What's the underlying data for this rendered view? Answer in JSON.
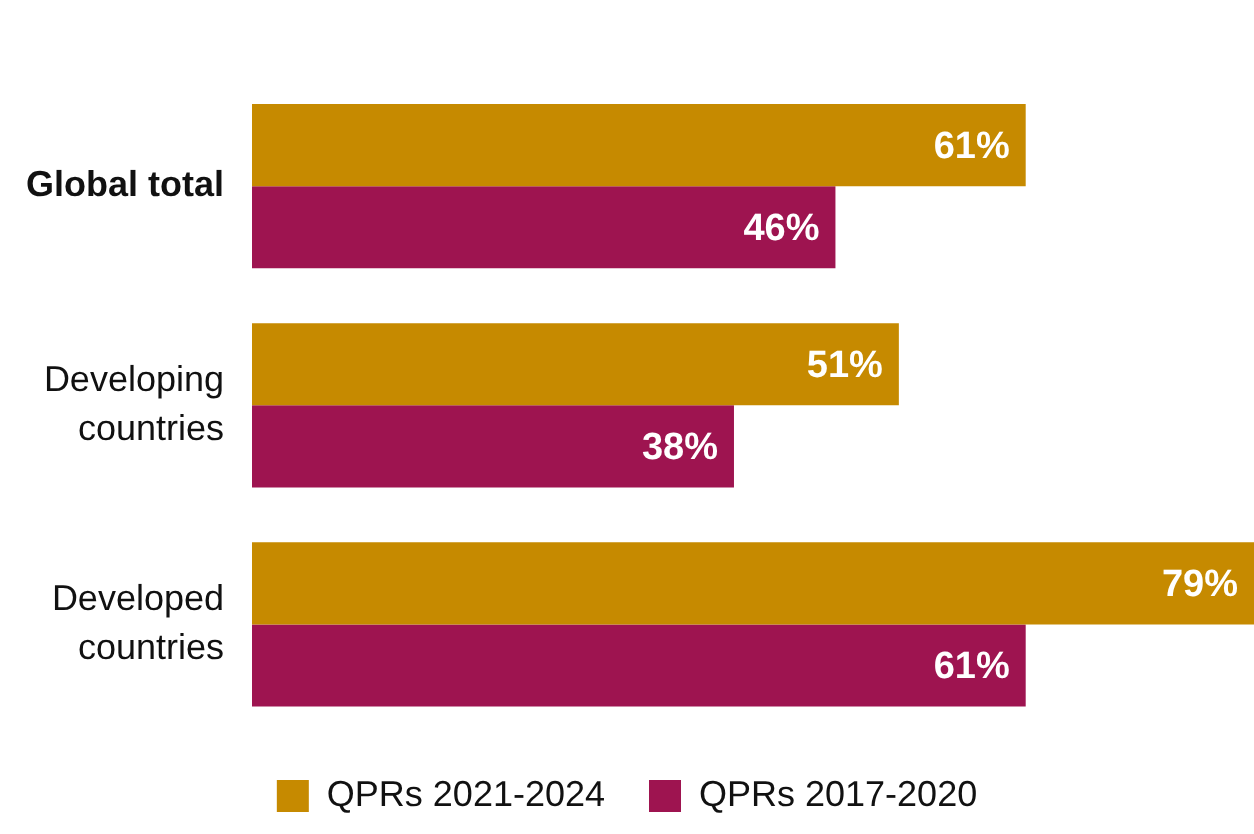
{
  "chart_data": {
    "type": "bar",
    "orientation": "horizontal",
    "categories": [
      "Global total",
      "Developing countries",
      "Developed countries"
    ],
    "series": [
      {
        "name": "QPRs 2021-2024",
        "color": "#c68a00",
        "values": [
          61,
          51,
          79
        ],
        "value_labels": [
          "61%",
          "51%",
          "79%"
        ]
      },
      {
        "name": "QPRs 2017-2020",
        "color": "#9e1450",
        "values": [
          46,
          38,
          61
        ],
        "value_labels": [
          "46%",
          "38%",
          "61%"
        ]
      }
    ],
    "xlim": [
      0,
      79
    ],
    "tick_labels": "y",
    "legend": "bottom"
  }
}
